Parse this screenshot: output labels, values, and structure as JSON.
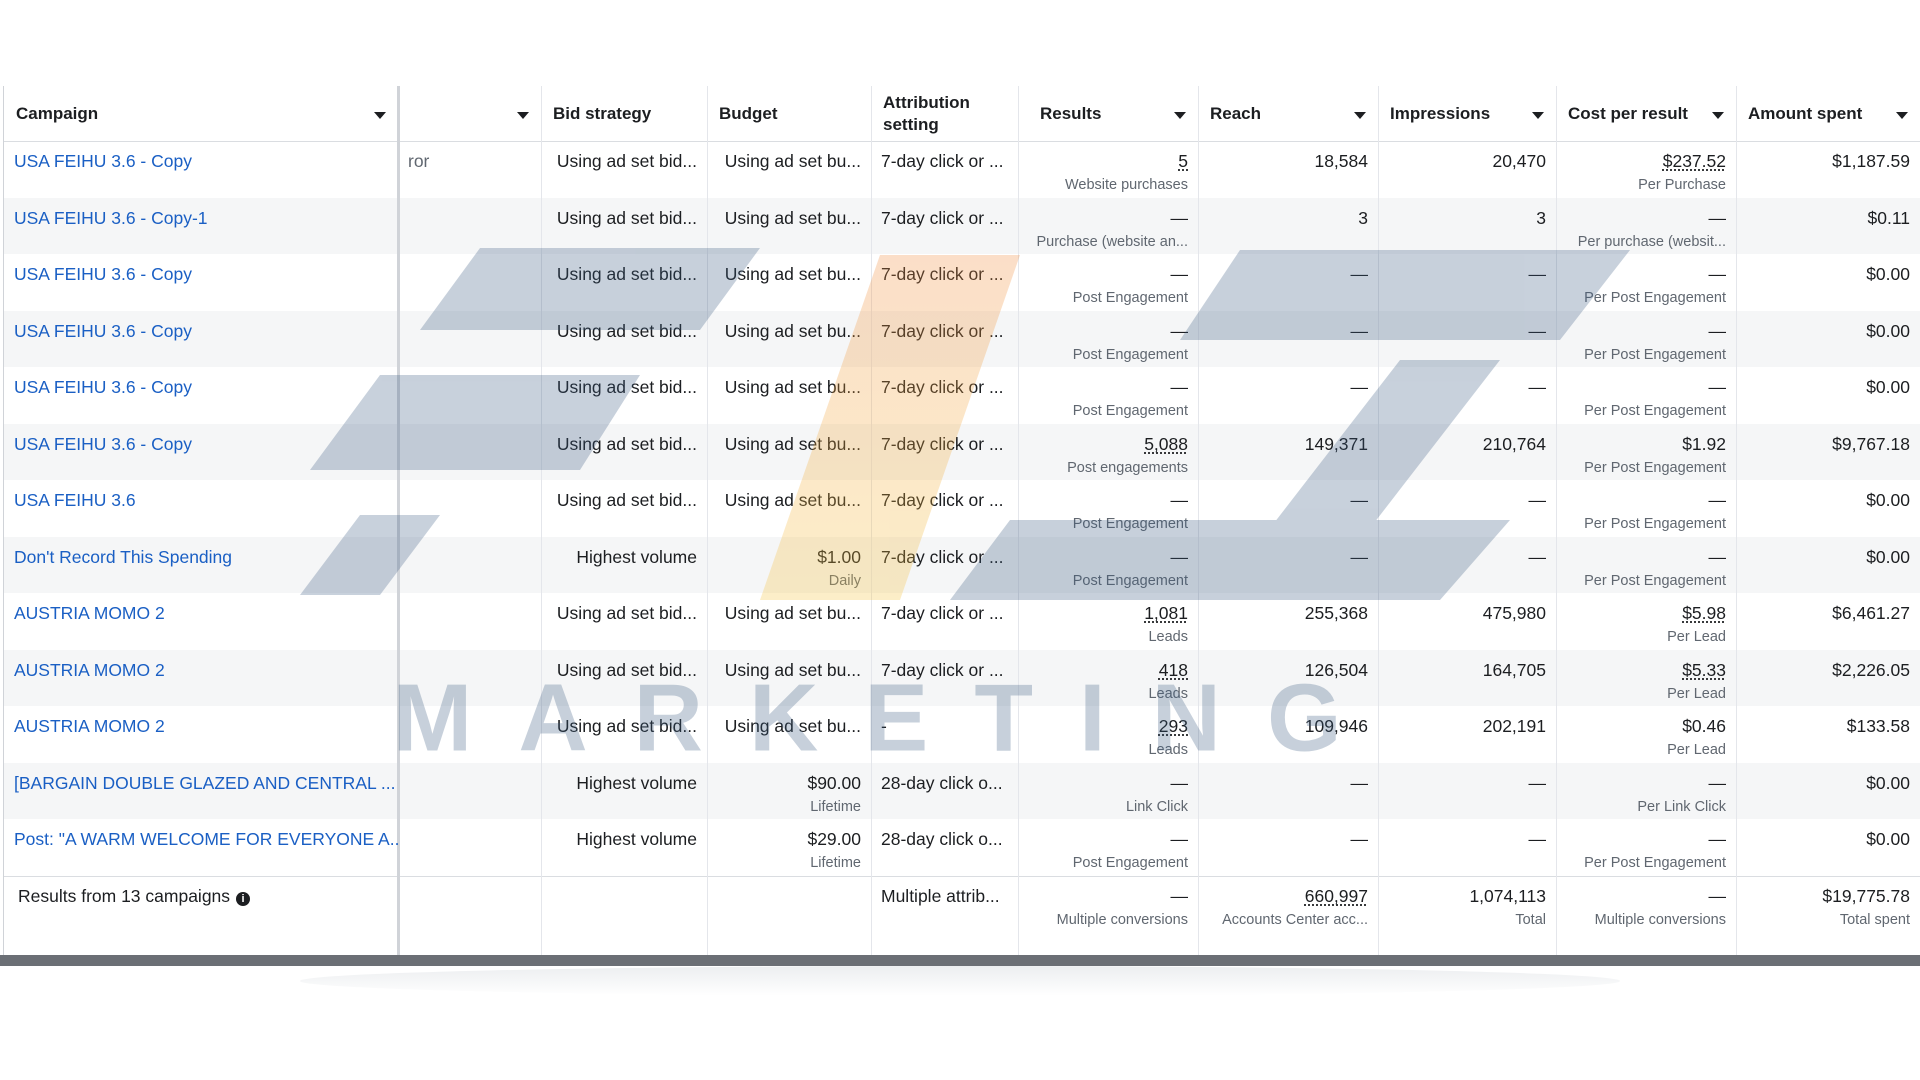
{
  "table": {
    "headers": [
      "Campaign",
      null,
      "Bid strategy",
      "Budget",
      "Attribution setting",
      "Results",
      "Reach",
      "Impressions",
      "Cost per result",
      "Amount spent"
    ],
    "rows": [
      [
        "USA FEIHU 3.6 - Copy",
        "ror",
        "Using ad set bid...",
        "Using ad set bu...",
        "7-day click or ...",
        {
          "main": "5",
          "sub": "Website purchases",
          "dotted": true
        },
        "18,584",
        "20,470",
        {
          "main": "$237.52",
          "sub": "Per Purchase",
          "dotted": true
        },
        "$1,187.59"
      ],
      [
        "USA FEIHU 3.6 - Copy-1",
        null,
        "Using ad set bid...",
        "Using ad set bu...",
        "7-day click or ...",
        {
          "main": "—",
          "sub": "Purchase (website an..."
        },
        "3",
        "3",
        {
          "main": "—",
          "sub": "Per purchase (websit..."
        },
        "$0.11"
      ],
      [
        "USA FEIHU 3.6 - Copy",
        null,
        "Using ad set bid...",
        "Using ad set bu...",
        "7-day click or ...",
        {
          "main": "—",
          "sub": "Post Engagement"
        },
        "—",
        "—",
        {
          "main": "—",
          "sub": "Per Post Engagement"
        },
        "$0.00"
      ],
      [
        "USA FEIHU 3.6 - Copy",
        null,
        "Using ad set bid...",
        "Using ad set bu...",
        "7-day click or ...",
        {
          "main": "—",
          "sub": "Post Engagement"
        },
        "—",
        "—",
        {
          "main": "—",
          "sub": "Per Post Engagement"
        },
        "$0.00"
      ],
      [
        "USA FEIHU 3.6 - Copy",
        null,
        "Using ad set bid...",
        "Using ad set bu...",
        "7-day click or ...",
        {
          "main": "—",
          "sub": "Post Engagement"
        },
        "—",
        "—",
        {
          "main": "—",
          "sub": "Per Post Engagement"
        },
        "$0.00"
      ],
      [
        "USA FEIHU 3.6 - Copy",
        null,
        "Using ad set bid...",
        "Using ad set bu...",
        "7-day click or ...",
        {
          "main": "5,088",
          "sub": "Post engagements",
          "dotted": true
        },
        "149,371",
        "210,764",
        {
          "main": "$1.92",
          "sub": "Per Post Engagement"
        },
        "$9,767.18"
      ],
      [
        "USA FEIHU 3.6",
        null,
        "Using ad set bid...",
        "Using ad set bu...",
        "7-day click or ...",
        {
          "main": "—",
          "sub": "Post Engagement"
        },
        "—",
        "—",
        {
          "main": "—",
          "sub": "Per Post Engagement"
        },
        "$0.00"
      ],
      [
        "Don't Record This Spending",
        null,
        "Highest volume",
        {
          "main": "$1.00",
          "sub": "Daily"
        },
        "7-day click or ...",
        {
          "main": "—",
          "sub": "Post Engagement"
        },
        "—",
        "—",
        {
          "main": "—",
          "sub": "Per Post Engagement"
        },
        "$0.00"
      ],
      [
        "AUSTRIA MOMO 2",
        null,
        "Using ad set bid...",
        "Using ad set bu...",
        "7-day click or ...",
        {
          "main": "1,081",
          "sub": "Leads",
          "dotted": true
        },
        "255,368",
        "475,980",
        {
          "main": "$5.98",
          "sub": "Per Lead",
          "dotted": true
        },
        "$6,461.27"
      ],
      [
        "AUSTRIA MOMO 2",
        null,
        "Using ad set bid...",
        "Using ad set bu...",
        "7-day click or ...",
        {
          "main": "418",
          "sub": "Leads",
          "dotted": true
        },
        "126,504",
        "164,705",
        {
          "main": "$5.33",
          "sub": "Per Lead",
          "dotted": true
        },
        "$2,226.05"
      ],
      [
        "AUSTRIA MOMO 2",
        null,
        "Using ad set bid...",
        "Using ad set bu...",
        "-",
        {
          "main": "293",
          "sub": "Leads",
          "dotted": true
        },
        "109,946",
        "202,191",
        {
          "main": "$0.46",
          "sub": "Per Lead"
        },
        "$133.58"
      ],
      [
        "[BARGAIN DOUBLE GLAZED AND CENTRAL ...",
        null,
        "Highest volume",
        {
          "main": "$90.00",
          "sub": "Lifetime"
        },
        "28-day click o...",
        {
          "main": "—",
          "sub": "Link Click"
        },
        "—",
        "—",
        {
          "main": "—",
          "sub": "Per Link Click"
        },
        "$0.00"
      ],
      [
        "Post: \"A WARM WELCOME FOR EVERYONE A...",
        null,
        "Highest volume",
        {
          "main": "$29.00",
          "sub": "Lifetime"
        },
        "28-day click o...",
        {
          "main": "—",
          "sub": "Post Engagement"
        },
        "—",
        "—",
        {
          "main": "—",
          "sub": "Per Post Engagement"
        },
        "$0.00"
      ]
    ],
    "footer": [
      "Results from 13 campaigns",
      null,
      null,
      null,
      "Multiple attrib...",
      {
        "main": "—",
        "sub": "Multiple conversions"
      },
      {
        "main": "660,997",
        "sub": "Accounts Center acc...",
        "dotted": true
      },
      {
        "main": "1,074,113",
        "sub": "Total"
      },
      {
        "main": "—",
        "sub": "Multiple conversions"
      },
      {
        "main": "$19,775.78",
        "sub": "Total spent"
      }
    ]
  },
  "watermark": {
    "text": "MARKETING"
  }
}
